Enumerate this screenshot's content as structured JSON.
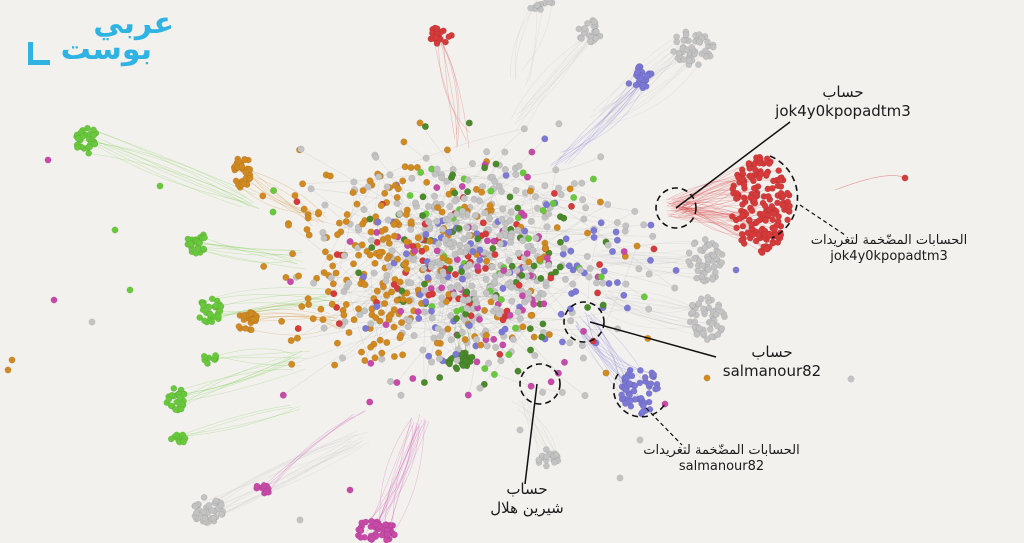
{
  "logo": {
    "line1": "عربي",
    "line2": "بوست"
  },
  "annotations": {
    "jok_account": {
      "line1": "حساب",
      "line2": "jok4y0kpopadtm3"
    },
    "jok_amplifiers": {
      "line1": "الحسابات المضّخمة لتغريدات",
      "line2": "jok4y0kpopadtm3"
    },
    "salman_account": {
      "line1": "حساب",
      "line2": "salmanour82"
    },
    "salman_amplifiers": {
      "line1": "الحسابات المضّخمة لتغريدات",
      "line2": "salmanour82"
    },
    "shireen_account": {
      "line1": "حساب",
      "line2": "شيرين هلال"
    }
  },
  "colors": {
    "background": "#f3f1ee",
    "grey": "#c3c3c3",
    "green": "#69c93c",
    "dark_green": "#4b8a2a",
    "orange": "#d18a21",
    "red": "#d63a3a",
    "purple": "#7c78d6",
    "magenta": "#c84aa8",
    "logo": "#2fb3e3"
  }
}
